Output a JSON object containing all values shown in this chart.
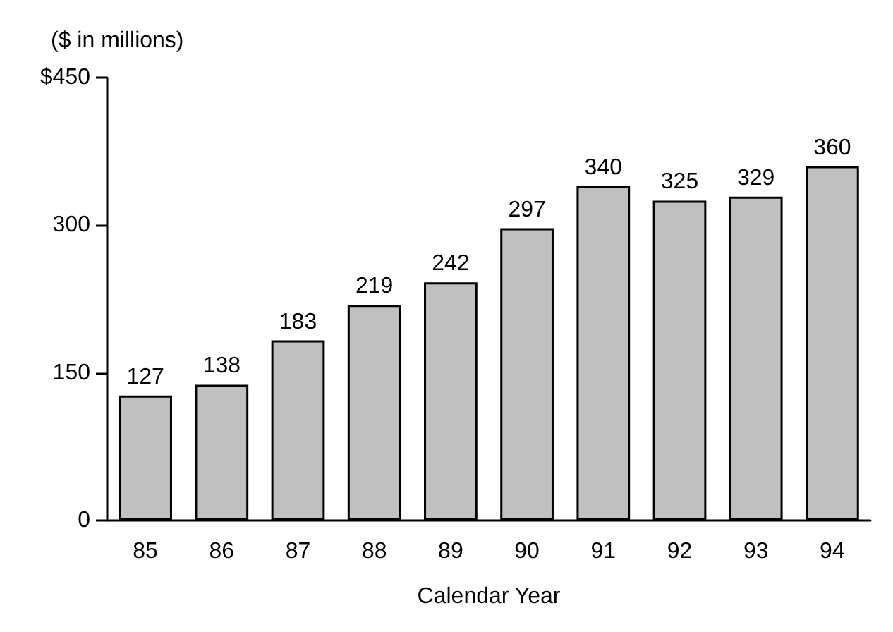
{
  "chart_data": {
    "type": "bar",
    "ylabel": "($ in millions)",
    "xlabel": "Calendar Year",
    "categories": [
      "85",
      "86",
      "87",
      "88",
      "89",
      "90",
      "91",
      "92",
      "93",
      "94"
    ],
    "values": [
      127,
      138,
      183,
      219,
      242,
      297,
      340,
      325,
      329,
      360
    ],
    "color": "#c0c0c0",
    "data_labels": true,
    "grid": false,
    "ylim": [
      0,
      450
    ],
    "yticks": [
      0,
      150,
      300,
      {
        "value": 450,
        "label": "$450"
      }
    ]
  }
}
